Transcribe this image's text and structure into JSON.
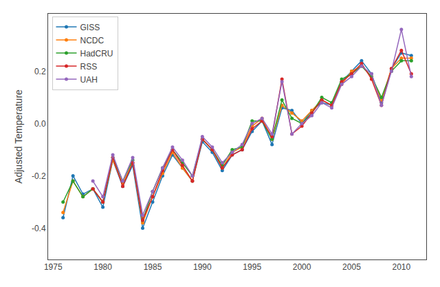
{
  "chart_data": {
    "type": "line",
    "ylabel": "Adjusted Temperature",
    "xlim": [
      1974.5,
      2012.5
    ],
    "ylim": [
      -0.52,
      0.42
    ],
    "xticks": [
      1975,
      1980,
      1985,
      1990,
      1995,
      2000,
      2005,
      2010
    ],
    "yticks": [
      -0.4,
      -0.2,
      {
        "value": 0,
        "label": "0.0"
      },
      0.2
    ],
    "grid": false,
    "legend": "upper left",
    "marker": "circle",
    "line_style": "solid",
    "series": [
      {
        "name": "GISS",
        "x": [
          1976,
          1977,
          1978,
          1979,
          1980,
          1981,
          1982,
          1983,
          1984,
          1985,
          1986,
          1987,
          1988,
          1989,
          1990,
          1991,
          1992,
          1993,
          1994,
          1995,
          1996,
          1997,
          1998,
          1999,
          2000,
          2001,
          2002,
          2003,
          2004,
          2005,
          2006,
          2007,
          2008,
          2009,
          2010,
          2011
        ],
        "values": [
          -0.36,
          -0.2,
          -0.27,
          -0.25,
          -0.32,
          -0.14,
          -0.24,
          -0.16,
          -0.4,
          -0.3,
          -0.2,
          -0.12,
          -0.17,
          -0.22,
          -0.07,
          -0.11,
          -0.18,
          -0.12,
          -0.1,
          -0.03,
          0.01,
          -0.08,
          0.06,
          0.05,
          0.0,
          0.05,
          0.08,
          0.07,
          0.16,
          0.2,
          0.24,
          0.19,
          0.08,
          0.21,
          0.27,
          0.26
        ]
      },
      {
        "name": "NCDC",
        "x": [
          1976,
          1977,
          1978,
          1979,
          1980,
          1981,
          1982,
          1983,
          1984,
          1985,
          1986,
          1987,
          1988,
          1989,
          1990,
          1991,
          1992,
          1993,
          1994,
          1995,
          1996,
          1997,
          1998,
          1999,
          2000,
          2001,
          2002,
          2003,
          2004,
          2005,
          2006,
          2007,
          2008,
          2009,
          2010,
          2011
        ],
        "values": [
          -0.34,
          -0.22,
          -0.28,
          -0.25,
          -0.3,
          -0.14,
          -0.23,
          -0.15,
          -0.38,
          -0.28,
          -0.19,
          -0.11,
          -0.17,
          -0.22,
          -0.06,
          -0.1,
          -0.17,
          -0.11,
          -0.09,
          -0.01,
          0.02,
          -0.06,
          0.07,
          0.04,
          0.01,
          0.05,
          0.09,
          0.07,
          0.15,
          0.2,
          0.22,
          0.18,
          0.09,
          0.21,
          0.25,
          0.25
        ]
      },
      {
        "name": "HadCRU",
        "x": [
          1976,
          1977,
          1978,
          1979,
          1980,
          1981,
          1982,
          1983,
          1984,
          1985,
          1986,
          1987,
          1988,
          1989,
          1990,
          1991,
          1992,
          1993,
          1994,
          1995,
          1996,
          1997,
          1998,
          1999,
          2000,
          2001,
          2002,
          2003,
          2004,
          2005,
          2006,
          2007,
          2008,
          2009,
          2010,
          2011
        ],
        "values": [
          -0.3,
          -0.22,
          -0.28,
          -0.25,
          -0.3,
          -0.13,
          -0.22,
          -0.14,
          -0.37,
          -0.26,
          -0.17,
          -0.1,
          -0.15,
          -0.2,
          -0.06,
          -0.1,
          -0.16,
          -0.1,
          -0.09,
          0.01,
          0.01,
          -0.06,
          0.09,
          0.02,
          0.0,
          0.04,
          0.1,
          0.08,
          0.17,
          0.19,
          0.22,
          0.18,
          0.1,
          0.2,
          0.24,
          0.24
        ]
      },
      {
        "name": "RSS",
        "x": [
          1979,
          1980,
          1981,
          1982,
          1983,
          1984,
          1985,
          1986,
          1987,
          1988,
          1989,
          1990,
          1991,
          1992,
          1993,
          1994,
          1995,
          1996,
          1997,
          1998,
          1999,
          2000,
          2001,
          2002,
          2003,
          2004,
          2005,
          2006,
          2007,
          2008,
          2009,
          2010,
          2011
        ],
        "values": [
          -0.25,
          -0.3,
          -0.13,
          -0.24,
          -0.15,
          -0.37,
          -0.28,
          -0.18,
          -0.1,
          -0.16,
          -0.22,
          -0.06,
          -0.1,
          -0.17,
          -0.12,
          -0.1,
          -0.02,
          0.01,
          -0.05,
          0.17,
          -0.04,
          -0.01,
          0.04,
          0.09,
          0.07,
          0.16,
          0.19,
          0.23,
          0.17,
          0.07,
          0.21,
          0.28,
          0.19
        ]
      },
      {
        "name": "UAH",
        "x": [
          1979,
          1980,
          1981,
          1982,
          1983,
          1984,
          1985,
          1986,
          1987,
          1988,
          1989,
          1990,
          1991,
          1992,
          1993,
          1994,
          1995,
          1996,
          1997,
          1998,
          1999,
          2000,
          2001,
          2002,
          2003,
          2004,
          2005,
          2006,
          2007,
          2008,
          2009,
          2010,
          2011
        ],
        "values": [
          -0.22,
          -0.28,
          -0.12,
          -0.22,
          -0.13,
          -0.35,
          -0.26,
          -0.17,
          -0.09,
          -0.14,
          -0.2,
          -0.05,
          -0.09,
          -0.15,
          -0.11,
          -0.08,
          0.0,
          0.02,
          -0.04,
          0.16,
          -0.04,
          0.0,
          0.03,
          0.08,
          0.06,
          0.15,
          0.18,
          0.22,
          0.19,
          0.07,
          0.2,
          0.36,
          0.18
        ]
      }
    ]
  }
}
